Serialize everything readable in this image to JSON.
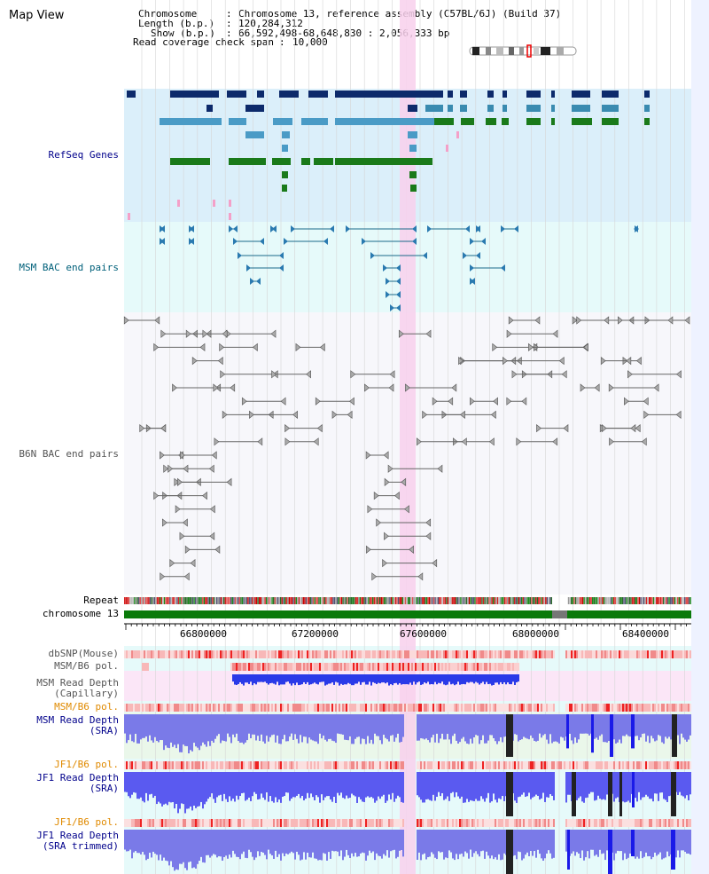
{
  "title": "Map View",
  "info": {
    "chromosome_key": "Chromosome",
    "chromosome_val": "Chromosome 13, reference assembly (C57BL/6J) (Build 37)",
    "length_key": "Length (b.p.)",
    "length_val": "120,284,312",
    "show_key": "Show (b.p.)",
    "show_val": "66,592,498-68,648,830 : 2,056,333 bp",
    "span_key": "Read coverage check span",
    "span_val": "10,000"
  },
  "tracks": {
    "refseq": "RefSeq Genes",
    "msm_bac": "MSM BAC end pairs",
    "b6n_bac": "B6N BAC end pairs",
    "repeat": "Repeat",
    "chromosome": "chromosome 13",
    "dbsnp": "dbSNP(Mouse)",
    "msm_b6_pol_1": "MSM/B6 pol.",
    "msm_depth_cap_1": "MSM Read Depth",
    "msm_depth_cap_2": "(Capillary)",
    "msm_b6_pol_2": "MSM/B6 pol.",
    "msm_depth_sra_1": "MSM Read Depth",
    "msm_depth_sra_2": "(SRA)",
    "jf1_b6_pol_1": "JF1/B6 pol.",
    "jf1_depth_sra_1": "JF1 Read Depth",
    "jf1_depth_sra_2": "(SRA)",
    "jf1_b6_pol_2": "JF1/B6 pol.",
    "jf1_depth_trim_1": "JF1 Read Depth",
    "jf1_depth_trim_2": "(SRA trimmed)"
  },
  "axis": {
    "ticks": [
      "66800000",
      "67200000",
      "67600000",
      "68000000",
      "68400000"
    ]
  },
  "colors": {
    "refseq_bg": "#dbeffa",
    "msm_bg": "#e6fafa",
    "b6n_bg": "#f7f7fb",
    "highlight": "#f8d0ec",
    "chrom_green": "#0a7a0a",
    "navy_label": "#00008b",
    "teal_label": "#00607a",
    "orange_label": "#e08a00"
  }
}
